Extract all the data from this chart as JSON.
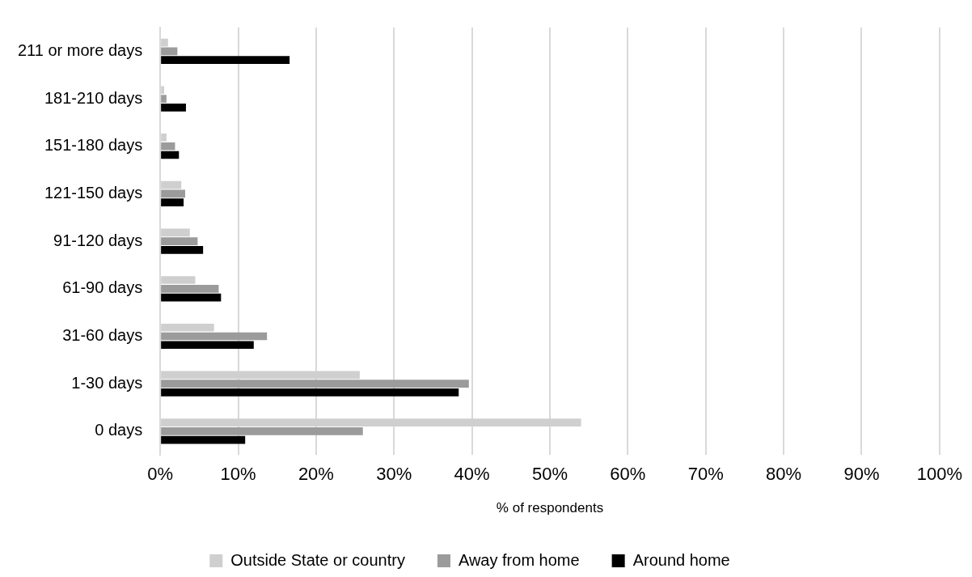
{
  "chart_data": {
    "type": "bar",
    "orientation": "horizontal",
    "xlabel": "% of respondents",
    "categories": [
      "211 or more days",
      "181-210 days",
      "151-180 days",
      "121-150 days",
      "91-120 days",
      "61-90 days",
      "31-60 days",
      "1-30 days",
      "0 days"
    ],
    "series": [
      {
        "name": "Outside State or country",
        "color": "#d0cfcf",
        "values": [
          1.0,
          0.5,
          0.8,
          2.7,
          3.8,
          4.5,
          6.9,
          25.6,
          54.0
        ]
      },
      {
        "name": "Away from home",
        "color": "#9b9b9b",
        "values": [
          2.2,
          0.8,
          1.9,
          3.2,
          4.8,
          7.5,
          13.7,
          39.6,
          26.0
        ]
      },
      {
        "name": "Around home",
        "color": "#000000",
        "values": [
          16.6,
          3.3,
          2.4,
          3.0,
          5.5,
          7.8,
          12.0,
          38.3,
          10.9
        ]
      }
    ],
    "xlim": [
      0,
      100
    ],
    "xticks": [
      {
        "value": 0,
        "label": "0%"
      },
      {
        "value": 10,
        "label": "10%"
      },
      {
        "value": 20,
        "label": "20%"
      },
      {
        "value": 30,
        "label": "30%"
      },
      {
        "value": 40,
        "label": "40%"
      },
      {
        "value": 50,
        "label": "50%"
      },
      {
        "value": 60,
        "label": "60%"
      },
      {
        "value": 70,
        "label": "70%"
      },
      {
        "value": 80,
        "label": "80%"
      },
      {
        "value": 90,
        "label": "90%"
      },
      {
        "value": 100,
        "label": "100%"
      }
    ],
    "grid": "x",
    "legend": "bottom"
  }
}
